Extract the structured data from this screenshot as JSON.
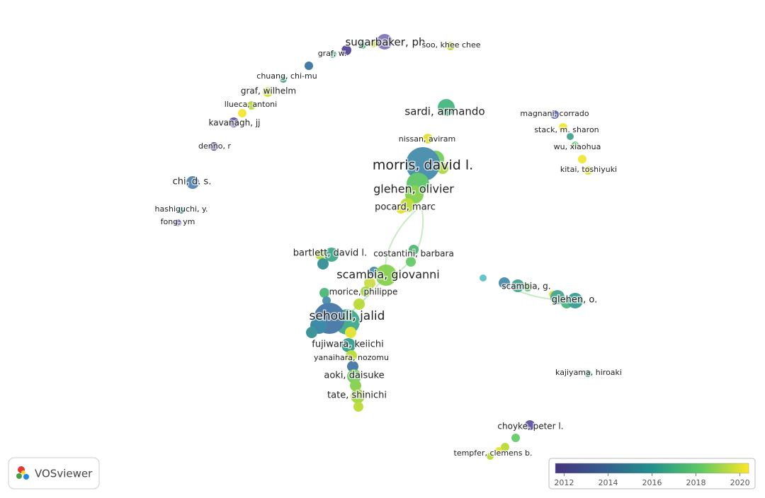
{
  "logo": "VOSviewer",
  "nodes": [
    {
      "label": "sugarbaker, ph"
    },
    {
      "label": "soo, khee chee"
    },
    {
      "label": "graf, w."
    },
    {
      "label": "chuang, chi-mu"
    },
    {
      "label": "graf, wilhelm"
    },
    {
      "label": "llueca, antoni"
    },
    {
      "label": "kavanagh, jj"
    },
    {
      "label": "denno, r"
    },
    {
      "label": "chi, d. s."
    },
    {
      "label": "hashiguchi, y."
    },
    {
      "label": "fong, ym"
    },
    {
      "label": "sardi, armando"
    },
    {
      "label": "nissan, aviram"
    },
    {
      "label": "morris, david l."
    },
    {
      "label": "glehen, olivier"
    },
    {
      "label": "pocard, marc"
    },
    {
      "label": "magnani, corrado"
    },
    {
      "label": "stack, m. sharon"
    },
    {
      "label": "wu, xiaohua"
    },
    {
      "label": "kitai, toshiyuki"
    },
    {
      "label": "bartlett, david l."
    },
    {
      "label": "costantini, barbara"
    },
    {
      "label": "scambia, giovanni"
    },
    {
      "label": "morice, philippe"
    },
    {
      "label": "sehouli, jalid"
    },
    {
      "label": "fujiwara, keiichi"
    },
    {
      "label": "yanaihara, nozomu"
    },
    {
      "label": "aoki, daisuke"
    },
    {
      "label": "tate, shinichi"
    },
    {
      "label": "scambia, g."
    },
    {
      "label": "glehen, o."
    },
    {
      "label": "kajiyama, hiroaki"
    },
    {
      "label": "choyke, peter l."
    },
    {
      "label": "tempfer, clemens b."
    }
  ],
  "colorbar": {
    "range": [
      2011.6,
      2020.4
    ],
    "ticks": [
      2012,
      2014,
      2016,
      2018,
      2020
    ]
  }
}
